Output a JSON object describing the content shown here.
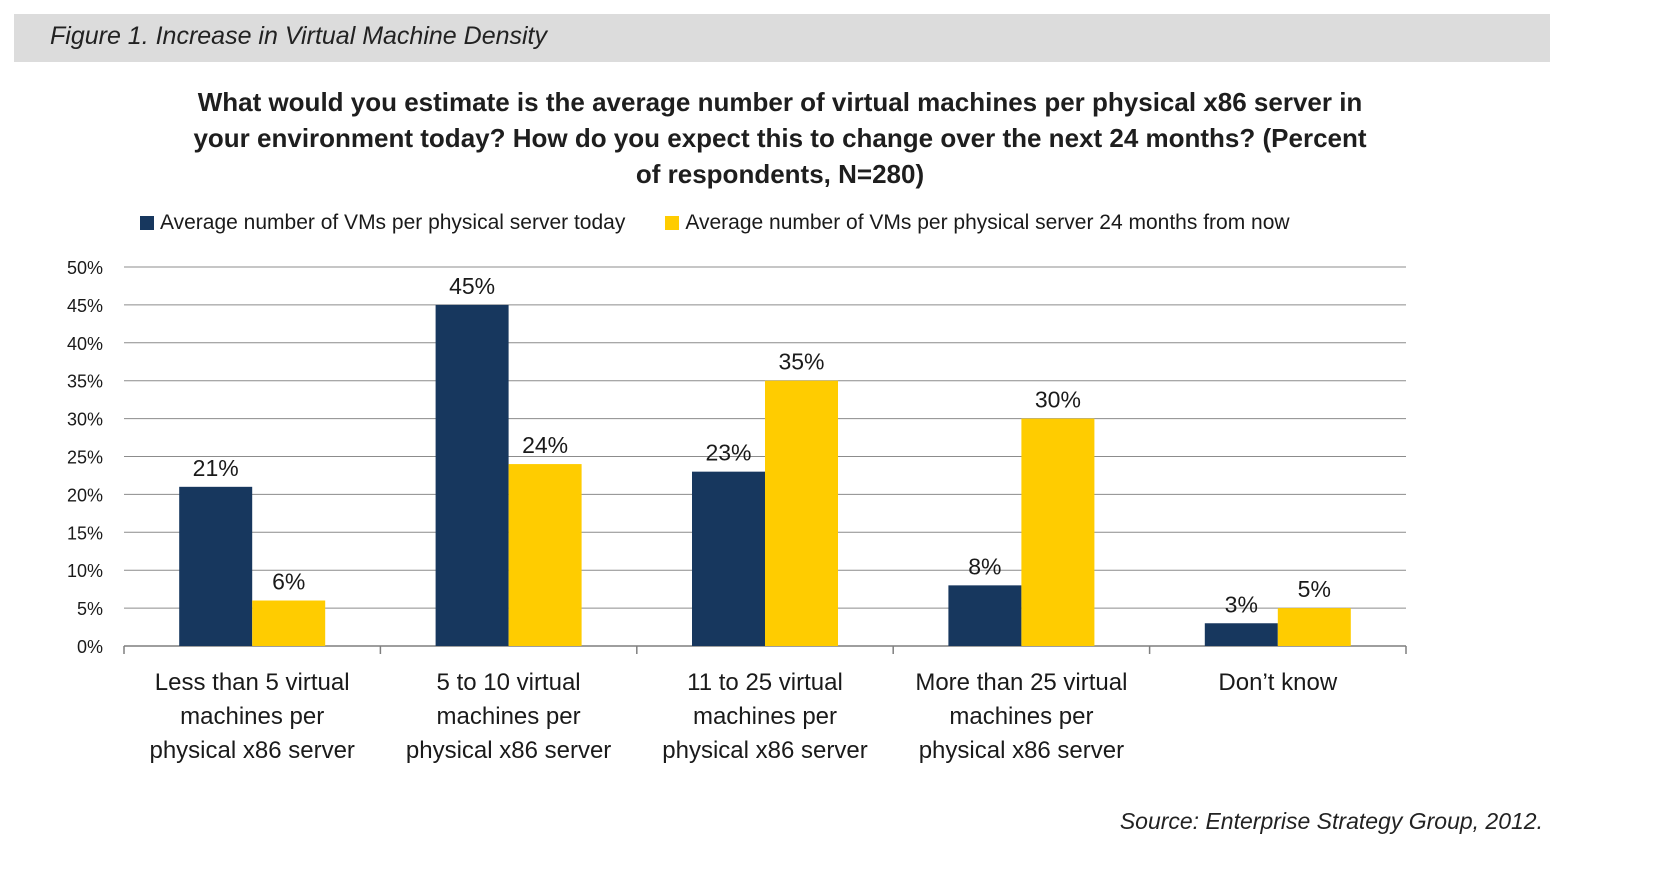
{
  "figure": {
    "caption": "Figure 1. Increase in Virtual Machine Density"
  },
  "source": "Source: Enterprise Strategy Group, 2012.",
  "colors": {
    "series_today": "#17375e",
    "series_future": "#ffcc00",
    "grid": "#8c8c8c",
    "header_bg": "#dcdcdc"
  },
  "chart_data": {
    "type": "bar",
    "title": "What would you estimate is the average number of virtual machines per physical x86 server in your environment today? How do you expect this to change over the next 24 months?  (Percent of respondents, N=280)",
    "categories": [
      "Less than 5 virtual machines per physical x86 server",
      "5 to 10 virtual machines per physical x86 server",
      "11 to 25 virtual machines per physical x86 server",
      "More than 25 virtual machines per physical x86 server",
      "Don’t know"
    ],
    "series": [
      {
        "name": "Average number of VMs per physical server today",
        "values": [
          21,
          45,
          23,
          8,
          3
        ],
        "labels": [
          "21%",
          "45%",
          "23%",
          "8%",
          "3%"
        ]
      },
      {
        "name": "Average number of VMs per physical server 24 months from now",
        "values": [
          6,
          24,
          35,
          30,
          5
        ],
        "labels": [
          "6%",
          "24%",
          "35%",
          "30%",
          "5%"
        ]
      }
    ],
    "yticks": [
      "0%",
      "5%",
      "10%",
      "15%",
      "20%",
      "25%",
      "30%",
      "35%",
      "40%",
      "45%",
      "50%"
    ],
    "ylim": [
      0,
      50
    ],
    "grid": true,
    "legend_position": "top"
  }
}
